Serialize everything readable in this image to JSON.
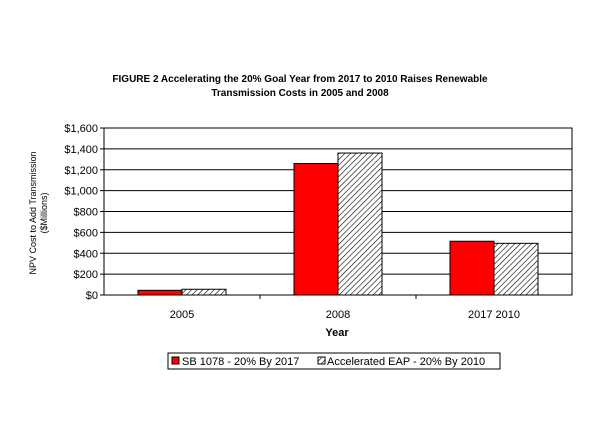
{
  "chart_data": {
    "type": "bar",
    "title_line1": "FIGURE 2   Accelerating the 20% Goal Year from 2017 to 2010 Raises Renewable",
    "title_line2": "Transmission Costs in 2005 and 2008",
    "ylabel_line1": "NPV Cost to Add Transmission",
    "ylabel_line2": "($Millions)",
    "xlabel": "Year",
    "categories": [
      "2005",
      "2008",
      "2017  2010"
    ],
    "series": [
      {
        "name": "SB 1078 - 20% By 2017",
        "values": [
          45,
          1260,
          515
        ],
        "color": "#ff0000",
        "pattern": "solid"
      },
      {
        "name": "Accelerated EAP - 20% By 2010",
        "values": [
          55,
          1360,
          495
        ],
        "color": "#ffffff",
        "pattern": "diagonal-hatch"
      }
    ],
    "ylim": [
      0,
      1600
    ],
    "yticks": [
      0,
      200,
      400,
      600,
      800,
      1000,
      1200,
      1400,
      1600
    ],
    "ytick_labels": [
      "$0",
      "$200",
      "$400",
      "$600",
      "$800",
      "$1,000",
      "$1,200",
      "$1,400",
      "$1,600"
    ],
    "grid": true,
    "legend_position": "bottom"
  }
}
